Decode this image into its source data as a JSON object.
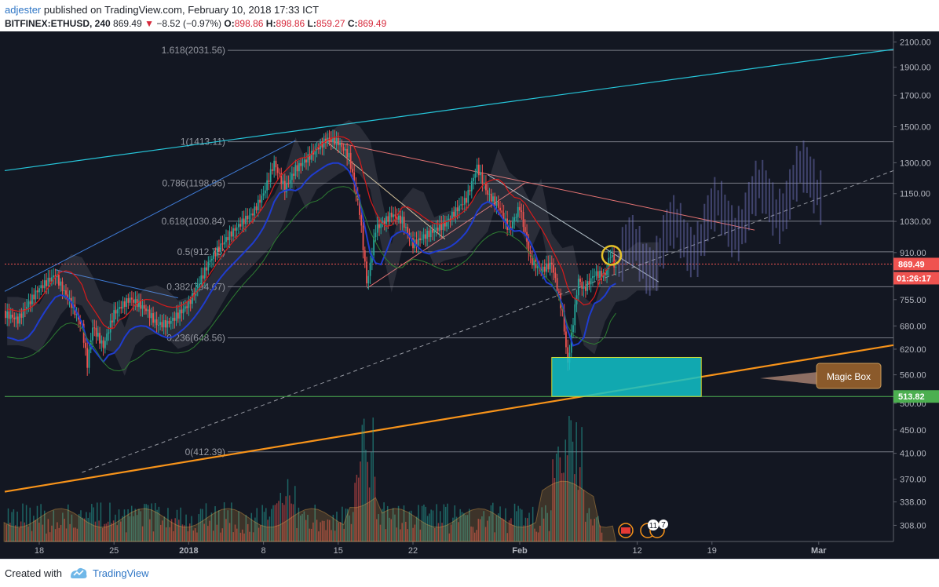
{
  "header": {
    "user": "adjester",
    "published_text": "published on TradingView.com, February 10, 2018 17:33 ICT",
    "symbol": "BITFINEX:ETHUSD, 240",
    "last": "869.49",
    "change": "−8.52 (−0.97%)",
    "o_label": "O:",
    "o_value": "898.86",
    "h_label": "H:",
    "h_value": "898.86",
    "l_label": "L:",
    "l_value": "859.27",
    "c_label": "C:",
    "c_value": "869.49"
  },
  "footer": {
    "created_with": "Created with",
    "brand": "TradingView"
  },
  "colors": {
    "background": "#131722",
    "up": "#26a69a",
    "down": "#ef5350",
    "fib_line": "#787b86",
    "cyan_trend": "#26c6da",
    "orange_trend": "#f7931a",
    "magic_box": "#12c2c9",
    "support": "#4caf50",
    "last_price": "#ef5350"
  },
  "chart_data": {
    "type": "candlestick",
    "symbol": "BITFINEX:ETHUSD",
    "interval": "240",
    "y_axis": {
      "scale": "log",
      "range": [
        280,
        2150
      ],
      "ticks": [
        2100,
        1900,
        1700,
        1500,
        1300,
        1150,
        1030,
        910,
        755,
        680,
        620,
        560,
        500,
        450,
        410,
        370,
        338,
        308
      ]
    },
    "x_axis": {
      "ticks": [
        {
          "label": "18",
          "day": 0
        },
        {
          "label": "25",
          "day": 7
        },
        {
          "label": "2018",
          "day": 14
        },
        {
          "label": "8",
          "day": 21
        },
        {
          "label": "15",
          "day": 28
        },
        {
          "label": "22",
          "day": 35
        },
        {
          "label": "Feb",
          "day": 45
        },
        {
          "label": "12",
          "day": 56
        },
        {
          "label": "19",
          "day": 63
        },
        {
          "label": "Mar",
          "day": 73
        }
      ]
    },
    "price_path": [
      {
        "day": -3.5,
        "price": 700
      },
      {
        "day": -2,
        "price": 680
      },
      {
        "day": 0,
        "price": 790
      },
      {
        "day": 1.5,
        "price": 850
      },
      {
        "day": 3,
        "price": 760
      },
      {
        "day": 4,
        "price": 690
      },
      {
        "day": 4.5,
        "price": 590
      },
      {
        "day": 5,
        "price": 680
      },
      {
        "day": 6,
        "price": 620
      },
      {
        "day": 7,
        "price": 700
      },
      {
        "day": 8.5,
        "price": 740
      },
      {
        "day": 10,
        "price": 720
      },
      {
        "day": 11,
        "price": 690
      },
      {
        "day": 12,
        "price": 700
      },
      {
        "day": 14,
        "price": 760
      },
      {
        "day": 16,
        "price": 880
      },
      {
        "day": 18,
        "price": 960
      },
      {
        "day": 20,
        "price": 1050
      },
      {
        "day": 21,
        "price": 1150
      },
      {
        "day": 22,
        "price": 1320
      },
      {
        "day": 23,
        "price": 1200
      },
      {
        "day": 24,
        "price": 1300
      },
      {
        "day": 26,
        "price": 1380
      },
      {
        "day": 27,
        "price": 1413
      },
      {
        "day": 28,
        "price": 1380
      },
      {
        "day": 29,
        "price": 1300
      },
      {
        "day": 30,
        "price": 1050
      },
      {
        "day": 30.7,
        "price": 790
      },
      {
        "day": 31.5,
        "price": 1000
      },
      {
        "day": 33,
        "price": 1080
      },
      {
        "day": 34,
        "price": 1060
      },
      {
        "day": 35,
        "price": 960
      },
      {
        "day": 36,
        "price": 980
      },
      {
        "day": 38,
        "price": 1000
      },
      {
        "day": 40,
        "price": 1100
      },
      {
        "day": 41,
        "price": 1260
      },
      {
        "day": 42,
        "price": 1150
      },
      {
        "day": 43,
        "price": 1110
      },
      {
        "day": 44,
        "price": 1020
      },
      {
        "day": 45,
        "price": 1120
      },
      {
        "day": 46,
        "price": 900
      },
      {
        "day": 47,
        "price": 850
      },
      {
        "day": 48,
        "price": 860
      },
      {
        "day": 49,
        "price": 700
      },
      {
        "day": 49.5,
        "price": 570
      },
      {
        "day": 50.5,
        "price": 800
      },
      {
        "day": 51,
        "price": 770
      },
      {
        "day": 52,
        "price": 830
      },
      {
        "day": 53,
        "price": 840
      },
      {
        "day": 53.5,
        "price": 920
      },
      {
        "day": 54,
        "price": 869.49
      }
    ],
    "fibonacci": [
      {
        "level": "1.618",
        "price": 2031.56,
        "label": "1.618(2031.56)"
      },
      {
        "level": "1",
        "price": 1413.11,
        "label": "1(1413.11)"
      },
      {
        "level": "0.786",
        "price": 1198.96,
        "label": "0.786(1198.96)"
      },
      {
        "level": "0.618",
        "price": 1030.84,
        "label": "0.618(1030.84)"
      },
      {
        "level": "0.5",
        "price": 912.75,
        "label": "0.5(912.75)"
      },
      {
        "level": "0.382",
        "price": 794.67,
        "label": "0.382(794.67)"
      },
      {
        "level": "0.236",
        "price": 648.56,
        "label": "0.236(648.56)"
      },
      {
        "level": "0",
        "price": 412.39,
        "label": "0(412.39)"
      }
    ],
    "last_price": 869.49,
    "last_price_label": "869.49",
    "countdown_label": "01:26:17",
    "support_level": 513.82,
    "support_label": "513.82",
    "magic_box": {
      "day_from": 48,
      "day_to": 62,
      "price_low": 513.82,
      "price_high": 600
    },
    "annotation": "Magic Box",
    "events": {
      "badge_a": "11",
      "badge_b": "7"
    },
    "volume_note": "volume histogram at bottom"
  }
}
